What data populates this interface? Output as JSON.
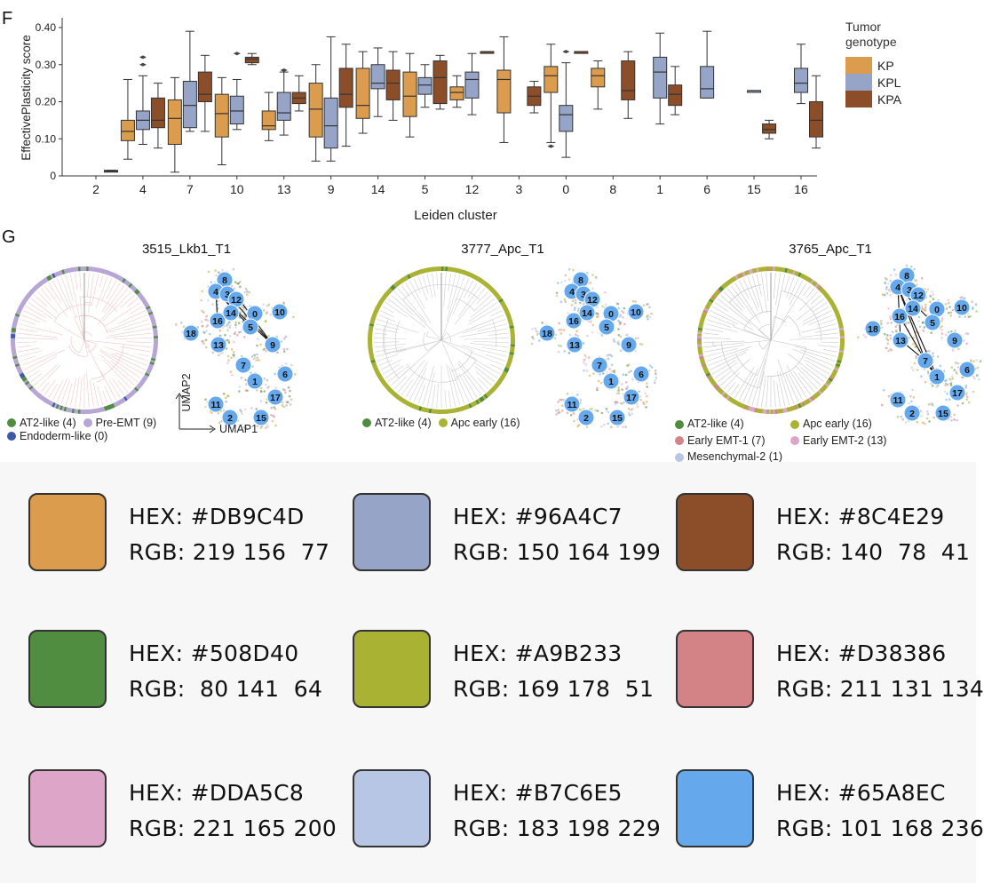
{
  "panel_f": {
    "letter": "F"
  },
  "panel_g": {
    "letter": "G"
  },
  "chart_data": {
    "type": "box",
    "title": "",
    "xlabel": "Leiden cluster",
    "ylabel": "EffectivePlasticity score",
    "ylim": [
      0,
      0.4
    ],
    "yticks": [
      "0",
      "0.10",
      "0.20",
      "0.30",
      "0.40"
    ],
    "categories": [
      "2",
      "4",
      "7",
      "10",
      "13",
      "9",
      "14",
      "5",
      "12",
      "3",
      "0",
      "8",
      "1",
      "6",
      "15",
      "16"
    ],
    "legend_title": "Tumor genotype",
    "series": [
      {
        "name": "KP",
        "color": "#DB9C4D",
        "boxes": [
          null,
          {
            "q1": 0.095,
            "med": 0.12,
            "q3": 0.15,
            "lo": 0.045,
            "hi": 0.26
          },
          {
            "q1": 0.085,
            "med": 0.155,
            "q3": 0.205,
            "lo": 0.01,
            "hi": 0.265
          },
          {
            "q1": 0.105,
            "med": 0.168,
            "q3": 0.22,
            "lo": 0.03,
            "hi": 0.265
          },
          {
            "q1": 0.125,
            "med": 0.135,
            "q3": 0.175,
            "lo": 0.095,
            "hi": 0.225
          },
          {
            "q1": 0.105,
            "med": 0.18,
            "q3": 0.25,
            "lo": 0.04,
            "hi": 0.3
          },
          {
            "q1": 0.155,
            "med": 0.19,
            "q3": 0.29,
            "lo": 0.115,
            "hi": 0.335
          },
          {
            "q1": 0.16,
            "med": 0.215,
            "q3": 0.28,
            "lo": 0.105,
            "hi": 0.33
          },
          {
            "q1": 0.205,
            "med": 0.225,
            "q3": 0.24,
            "lo": 0.185,
            "hi": 0.27
          },
          {
            "q1": 0.17,
            "med": 0.26,
            "q3": 0.285,
            "lo": 0.09,
            "hi": 0.375
          },
          {
            "q1": 0.225,
            "med": 0.27,
            "q3": 0.295,
            "lo": 0.09,
            "hi": 0.355
          },
          {
            "q1": 0.24,
            "med": 0.27,
            "q3": 0.29,
            "lo": 0.18,
            "hi": 0.31
          },
          null,
          null,
          null,
          null
        ]
      },
      {
        "name": "KPL",
        "color": "#96A4C7",
        "boxes": [
          null,
          {
            "q1": 0.125,
            "med": 0.15,
            "q3": 0.175,
            "lo": 0.085,
            "hi": 0.27
          },
          {
            "q1": 0.13,
            "med": 0.19,
            "q3": 0.255,
            "lo": 0.12,
            "hi": 0.39
          },
          {
            "q1": 0.14,
            "med": 0.175,
            "q3": 0.215,
            "lo": 0.125,
            "hi": 0.26
          },
          {
            "q1": 0.15,
            "med": 0.17,
            "q3": 0.225,
            "lo": 0.11,
            "hi": 0.28
          },
          {
            "q1": 0.075,
            "med": 0.135,
            "q3": 0.21,
            "lo": 0.04,
            "hi": 0.375
          },
          {
            "q1": 0.235,
            "med": 0.25,
            "q3": 0.3,
            "lo": 0.16,
            "hi": 0.345
          },
          {
            "q1": 0.22,
            "med": 0.245,
            "q3": 0.265,
            "lo": 0.185,
            "hi": 0.3
          },
          {
            "q1": 0.21,
            "med": 0.26,
            "q3": 0.28,
            "lo": 0.165,
            "hi": 0.33
          },
          null,
          {
            "q1": 0.12,
            "med": 0.165,
            "q3": 0.19,
            "lo": 0.05,
            "hi": 0.305
          },
          null,
          {
            "q1": 0.21,
            "med": 0.28,
            "q3": 0.32,
            "lo": 0.14,
            "hi": 0.385
          },
          {
            "q1": 0.21,
            "med": 0.235,
            "q3": 0.295,
            "lo": 0.21,
            "hi": 0.39
          },
          {
            "q1": 0.23,
            "med": 0.23,
            "q3": 0.23,
            "lo": 0.23,
            "hi": 0.23
          },
          {
            "q1": 0.225,
            "med": 0.25,
            "q3": 0.29,
            "lo": 0.195,
            "hi": 0.355
          }
        ]
      },
      {
        "name": "KPA",
        "color": "#8C4E29",
        "boxes": [
          {
            "q1": 0.012,
            "med": 0.013,
            "q3": 0.015,
            "lo": 0.012,
            "hi": 0.015
          },
          {
            "q1": 0.13,
            "med": 0.15,
            "q3": 0.21,
            "lo": 0.075,
            "hi": 0.25
          },
          {
            "q1": 0.2,
            "med": 0.22,
            "q3": 0.28,
            "lo": 0.12,
            "hi": 0.325
          },
          {
            "q1": 0.305,
            "med": 0.315,
            "q3": 0.32,
            "lo": 0.3,
            "hi": 0.33
          },
          {
            "q1": 0.195,
            "med": 0.21,
            "q3": 0.225,
            "lo": 0.175,
            "hi": 0.27
          },
          {
            "q1": 0.185,
            "med": 0.22,
            "q3": 0.29,
            "lo": 0.08,
            "hi": 0.355
          },
          {
            "q1": 0.205,
            "med": 0.25,
            "q3": 0.285,
            "lo": 0.15,
            "hi": 0.335
          },
          {
            "q1": 0.195,
            "med": 0.265,
            "q3": 0.31,
            "lo": 0.18,
            "hi": 0.325
          },
          {
            "q1": 0.335,
            "med": 0.335,
            "q3": 0.335,
            "lo": 0.335,
            "hi": 0.335
          },
          {
            "q1": 0.19,
            "med": 0.215,
            "q3": 0.24,
            "lo": 0.17,
            "hi": 0.255
          },
          {
            "q1": 0.335,
            "med": 0.335,
            "q3": 0.335,
            "lo": 0.335,
            "hi": 0.335
          },
          {
            "q1": 0.205,
            "med": 0.23,
            "q3": 0.31,
            "lo": 0.155,
            "hi": 0.335
          },
          {
            "q1": 0.19,
            "med": 0.22,
            "q3": 0.245,
            "lo": 0.165,
            "hi": 0.295
          },
          null,
          {
            "q1": 0.115,
            "med": 0.125,
            "q3": 0.14,
            "lo": 0.1,
            "hi": 0.15
          },
          {
            "q1": 0.105,
            "med": 0.15,
            "q3": 0.2,
            "lo": 0.075,
            "hi": 0.27
          }
        ]
      }
    ],
    "outliers": [
      {
        "cat": "4",
        "series": "KPL",
        "values": [
          0.3,
          0.32
        ]
      },
      {
        "cat": "10",
        "series": "KPL",
        "values": [
          0.33
        ]
      },
      {
        "cat": "13",
        "series": "KPL",
        "values": [
          0.285
        ]
      },
      {
        "cat": "0",
        "series": "KP",
        "values": [
          0.08
        ]
      },
      {
        "cat": "0",
        "series": "KPL",
        "values": [
          0.335
        ]
      }
    ]
  },
  "trees": [
    {
      "title": "3515_Lkb1_T1",
      "legend": [
        {
          "label": "AT2-like (4)",
          "color": "#508D40"
        },
        {
          "label": "Pre-EMT (9)",
          "color": "#B7A5D6"
        },
        {
          "label": "Endoderm-like (0)",
          "color": "#3C5AA6"
        }
      ]
    },
    {
      "title": "3777_Apc_T1",
      "legend": [
        {
          "label": "AT2-like (4)",
          "color": "#508D40"
        },
        {
          "label": "Apc early (16)",
          "color": "#A9B233"
        }
      ]
    },
    {
      "title": "3765_Apc_T1",
      "legend": [
        {
          "label": "AT2-like (4)",
          "color": "#508D40"
        },
        {
          "label": "Apc early (16)",
          "color": "#A9B233"
        },
        {
          "label": "Early EMT-1 (7)",
          "color": "#D38386"
        },
        {
          "label": "Early EMT-2 (13)",
          "color": "#DDA5C8"
        },
        {
          "label": "Mesenchymal-2 (1)",
          "color": "#B7C6E5"
        }
      ]
    }
  ],
  "umap": {
    "xlabel": "UMAP1",
    "ylabel": "UMAP2",
    "nodes": [
      "8",
      "4",
      "3",
      "12",
      "16",
      "14",
      "0",
      "10",
      "18",
      "5",
      "9",
      "13",
      "7",
      "1",
      "6",
      "17",
      "11",
      "2",
      "15"
    ]
  },
  "swatches": [
    {
      "hex_label": "HEX: #DB9C4D",
      "rgb_label": "RGB: 219 156  77",
      "color": "#DB9C4D"
    },
    {
      "hex_label": "HEX: #96A4C7",
      "rgb_label": "RGB: 150 164 199",
      "color": "#96A4C7"
    },
    {
      "hex_label": "HEX: #8C4E29",
      "rgb_label": "RGB: 140  78  41",
      "color": "#8C4E29"
    },
    {
      "hex_label": "HEX: #508D40",
      "rgb_label": "RGB:  80 141  64",
      "color": "#508D40"
    },
    {
      "hex_label": "HEX: #A9B233",
      "rgb_label": "RGB: 169 178  51",
      "color": "#A9B233"
    },
    {
      "hex_label": "HEX: #D38386",
      "rgb_label": "RGB: 211 131 134",
      "color": "#D38386"
    },
    {
      "hex_label": "HEX: #DDA5C8",
      "rgb_label": "RGB: 221 165 200",
      "color": "#DDA5C8"
    },
    {
      "hex_label": "HEX: #B7C6E5",
      "rgb_label": "RGB: 183 198 229",
      "color": "#B7C6E5"
    },
    {
      "hex_label": "HEX: #65A8EC",
      "rgb_label": "RGB: 101 168 236",
      "color": "#65A8EC"
    }
  ]
}
